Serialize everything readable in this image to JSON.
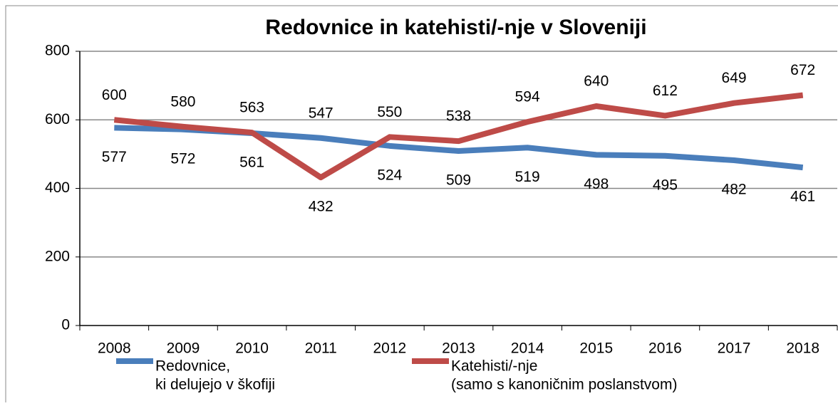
{
  "chart_data": {
    "type": "line",
    "title": "Redovnice in katehisti/-nje v Sloveniji",
    "categories": [
      "2008",
      "2009",
      "2010",
      "2011",
      "2012",
      "2013",
      "2014",
      "2015",
      "2016",
      "2017",
      "2018"
    ],
    "series": [
      {
        "name": [
          "Redovnice,",
          "ki delujejo v škofiji"
        ],
        "color": "#4a7ebb",
        "values": [
          577,
          572,
          561,
          547,
          524,
          509,
          519,
          498,
          495,
          482,
          461
        ]
      },
      {
        "name": [
          "Katehisti/-nje",
          "(samo s kanoničnim poslanstvom)"
        ],
        "color": "#be4b48",
        "values": [
          600,
          580,
          563,
          432,
          550,
          538,
          594,
          640,
          612,
          649,
          672
        ]
      }
    ],
    "ylim": [
      0,
      800
    ],
    "yticks": [
      0,
      200,
      400,
      600,
      800
    ],
    "grid": true
  }
}
